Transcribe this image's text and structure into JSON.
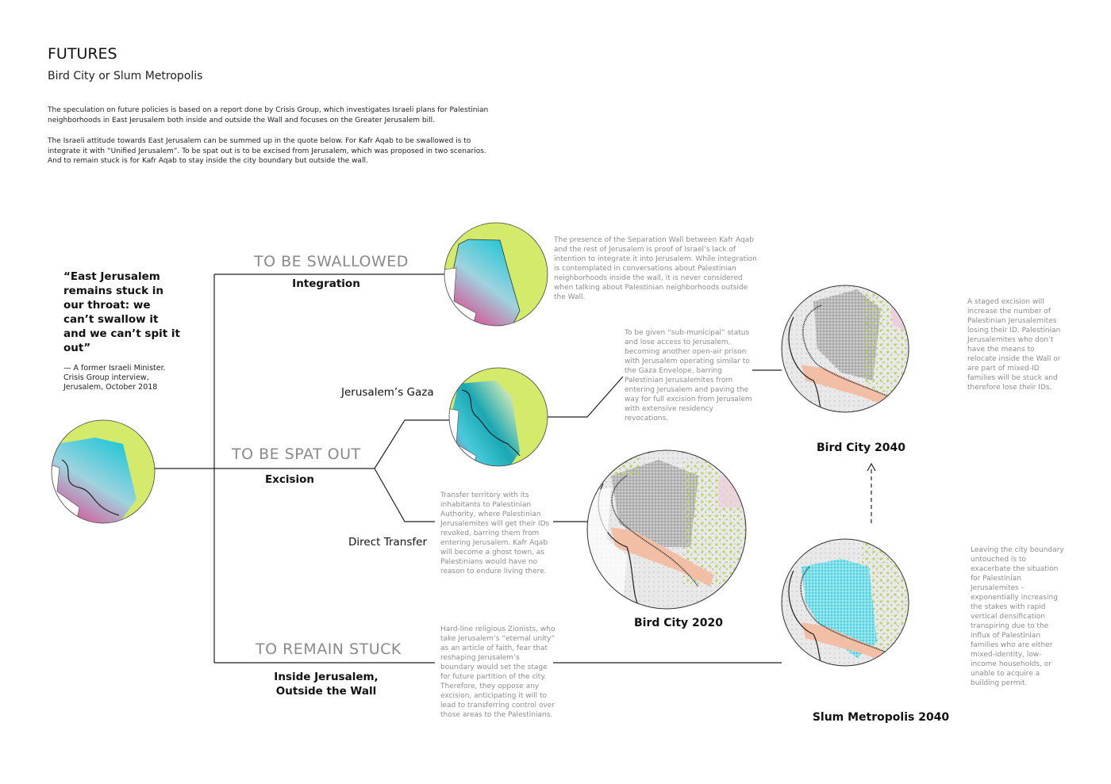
{
  "header": {
    "title": "FUTURES",
    "subtitle": "Bird City or Slum Metropolis",
    "intro": [
      "The speculation on future policies is based on a report done by Crisis Group, which investigates Israeli plans for Palestinian neighborhoods in East Jerusalem both inside and outside the Wall and focuses on the Greater Jerusalem bill.",
      "The Israeli attitude towards East Jerusalem can be summed up in the quote below. For Kafr Aqab to be swallowed is to integrate it with “Unified Jerusalem”. To be spat out is to be excised from Jerusalem, which was proposed in two scenarios. And to remain stuck is for Kafr Aqab to stay inside the city boundary but outside the wall."
    ]
  },
  "quote": {
    "text": "“East Jerusalem remains stuck in our throat: we can’t swallow it and we can’t spit it out”",
    "attribution": "— A former Israeli Minister. Crisis Group interview, Jerusalem, October 2018"
  },
  "branches": {
    "swallowed": {
      "label": "TO BE SWALLOWED",
      "sub": "Integration",
      "note": "The presence of the Separation Wall between Kafr Aqab and the rest of Jerusalem is proof of Israel’s lack of intention to integrate it into Jerusalem. While integration is contemplated in conversations about Palestinian neighborhoods inside the wall, it is never considered when talking about Palestinian neighborhoods outside the Wall."
    },
    "spat": {
      "label": "TO BE SPAT OUT",
      "sub": "Excision",
      "gaza": {
        "label": "Jerusalem’s Gaza",
        "note": "To be given “sub-municipal” status and lose access to Jerusalem, becoming another open-air prison with Jerusalem operating similar to the Gaza Envelope, barring Palestinian Jerusalemites from entering Jerusalem  and paving the way for full excision from Jerusalem with extensive residency revocations."
      },
      "transfer": {
        "label": "Direct Transfer",
        "note": "Transfer territory with its inhabitants to Palestinian Authority, where Palestinian Jerusalemites will get their IDs revoked, barring them from entering Jerusalem. Kafr Aqab will become a ghost town, as Palestinians would have no reason to endure living there."
      }
    },
    "stuck": {
      "label": "TO REMAIN STUCK",
      "sub": "Inside Jerusalem, Outside the Wall",
      "note": "Hard-line religious Zionists, who take Jerusalem’s “eternal unity” as an article of faith, fear that reshaping Jerusalem’s boundary would set the stage for future partition of the city. Therefore, they oppose any excision, anticipating it will to lead to transferring control over those areas to the Palestinians."
    }
  },
  "maps": {
    "bird2020": {
      "caption": "Bird City 2020"
    },
    "bird2040": {
      "caption": "Bird City 2040",
      "note": "A staged excision will increase the number of Palestinian Jerusalemites losing their ID. Palestinian Jerusalemites who don’t have the means to relocate inside the Wall or are part of mixed-ID families will be stuck and therefore lose their IDs."
    },
    "slum2040": {
      "caption": "Slum Metropolis 2040",
      "note": "Leaving the city boundary untouched is to exacerbate the situation for Palestinian Jerusalemites - exponentially increasing the stakes with rapid vertical densification transpiring due to the influx of Palestinian families who are either mixed-identity, low-income households, or unable to acquire a building permit."
    }
  },
  "colors": {
    "green": "#d4ea6b",
    "cyan": "#22c7d6",
    "magenta": "#e0458e",
    "line": "#222222",
    "branch_gray": "#8a8a8a",
    "note_gray": "#8d8d8d",
    "salmon": "#f2bfa6"
  }
}
